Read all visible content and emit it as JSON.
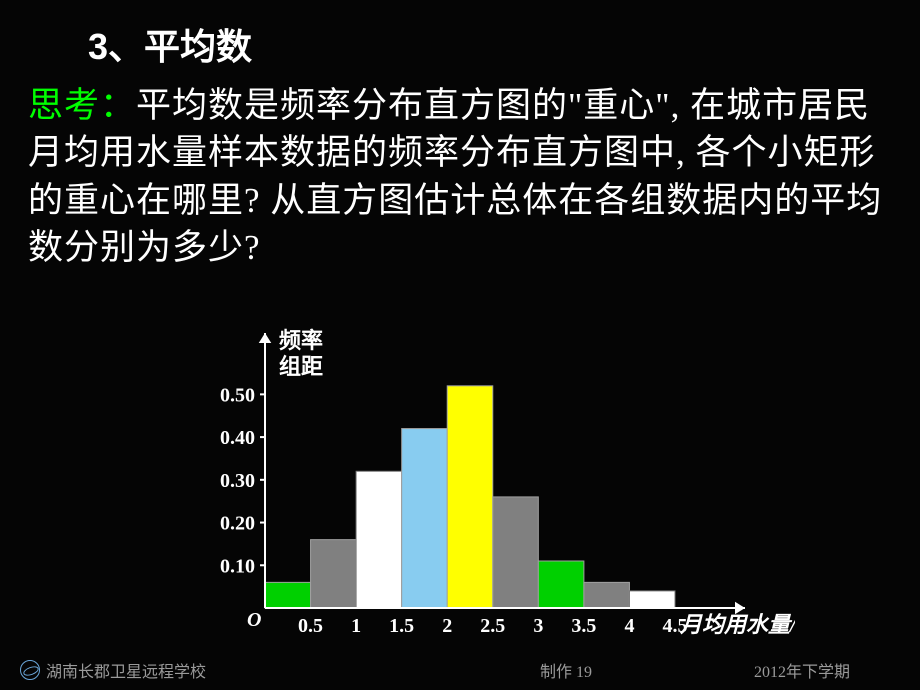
{
  "section_title": "3、平均数",
  "thinking_label": "思考：",
  "paragraph": "平均数是频率分布直方图的\"重心\", 在城市居民月均用水量样本数据的频率分布直方图中, 各个小矩形的重心在哪里? 从直方图估计总体在各组数据内的平均数分别为多少?",
  "chart": {
    "type": "histogram",
    "y_axis_label_line1": "频率",
    "y_axis_label_line2": "组距",
    "x_axis_label": "月均用水量/t",
    "origin_label": "O",
    "x_ticks": [
      "0.5",
      "1",
      "1.5",
      "2",
      "2.5",
      "3",
      "3.5",
      "4",
      "4.5"
    ],
    "y_ticks": [
      "0.10",
      "0.20",
      "0.30",
      "0.40",
      "0.50"
    ],
    "y_max": 0.55,
    "bar_width_units": 0.5,
    "bars": [
      {
        "x_start": 0.0,
        "height": 0.06,
        "fill": "#00d000",
        "stroke": "#a0a0a0"
      },
      {
        "x_start": 0.5,
        "height": 0.16,
        "fill": "#808080",
        "stroke": "#a0a0a0"
      },
      {
        "x_start": 1.0,
        "height": 0.32,
        "fill": "#ffffff",
        "stroke": "#787878"
      },
      {
        "x_start": 1.5,
        "height": 0.42,
        "fill": "#88ccf0",
        "stroke": "#a0a0a0"
      },
      {
        "x_start": 2.0,
        "height": 0.52,
        "fill": "#ffff00",
        "stroke": "#a0a0a0"
      },
      {
        "x_start": 2.5,
        "height": 0.26,
        "fill": "#808080",
        "stroke": "#a0a0a0"
      },
      {
        "x_start": 3.0,
        "height": 0.11,
        "fill": "#00d000",
        "stroke": "#a0a0a0"
      },
      {
        "x_start": 3.5,
        "height": 0.06,
        "fill": "#808080",
        "stroke": "#a0a0a0"
      },
      {
        "x_start": 4.0,
        "height": 0.04,
        "fill": "#ffffff",
        "stroke": "#787878"
      }
    ],
    "axis_color": "#ffffff",
    "axis_stroke_width": 2,
    "arrow_size": 10
  },
  "footer": {
    "school": "湖南长郡卫星远程学校",
    "center": "制作 19",
    "right": "2012年下学期"
  }
}
